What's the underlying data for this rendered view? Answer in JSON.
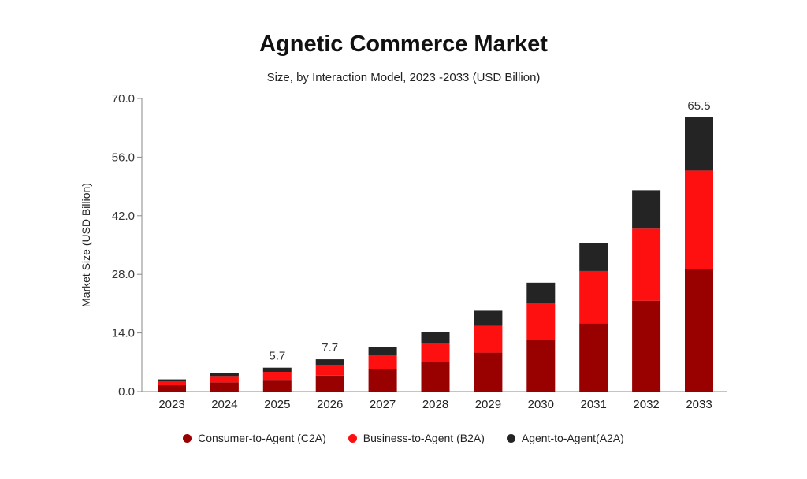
{
  "chart_data": {
    "type": "bar",
    "stacked": true,
    "title": "Agnetic Commerce Market",
    "subtitle": "Size, by Interaction Model, 2023 -2033 (USD Billion)",
    "xlabel": "",
    "ylabel": "Market Size (USD Billion)",
    "ylim": [
      0,
      70
    ],
    "yticks": [
      "0.0",
      "14.0",
      "28.0",
      "42.0",
      "56.0",
      "70.0"
    ],
    "grid": false,
    "legend_placement": "bottom",
    "categories": [
      "2023",
      "2024",
      "2025",
      "2026",
      "2027",
      "2028",
      "2029",
      "2030",
      "2031",
      "2032",
      "2033"
    ],
    "series": [
      {
        "name": "Consumer-to-Agent (C2A)",
        "color": "#990000",
        "values": [
          1.5,
          2.2,
          2.8,
          3.8,
          5.3,
          7.1,
          9.3,
          12.3,
          16.3,
          21.7,
          29.3
        ]
      },
      {
        "name": "Business-to-Agent (B2A)",
        "color": "#ff1010",
        "values": [
          1.0,
          1.5,
          1.9,
          2.6,
          3.4,
          4.4,
          6.4,
          8.8,
          12.5,
          17.2,
          23.5
        ]
      },
      {
        "name": "Agent-to-Agent(A2A)",
        "color": "#242424",
        "values": [
          0.4,
          0.7,
          1.0,
          1.3,
          1.9,
          2.7,
          3.6,
          4.9,
          6.6,
          9.2,
          12.7
        ]
      }
    ],
    "annotations": [
      {
        "category": "2025",
        "text": "5.7"
      },
      {
        "category": "2026",
        "text": "7.7"
      },
      {
        "category": "2033",
        "text": "65.5"
      }
    ]
  }
}
